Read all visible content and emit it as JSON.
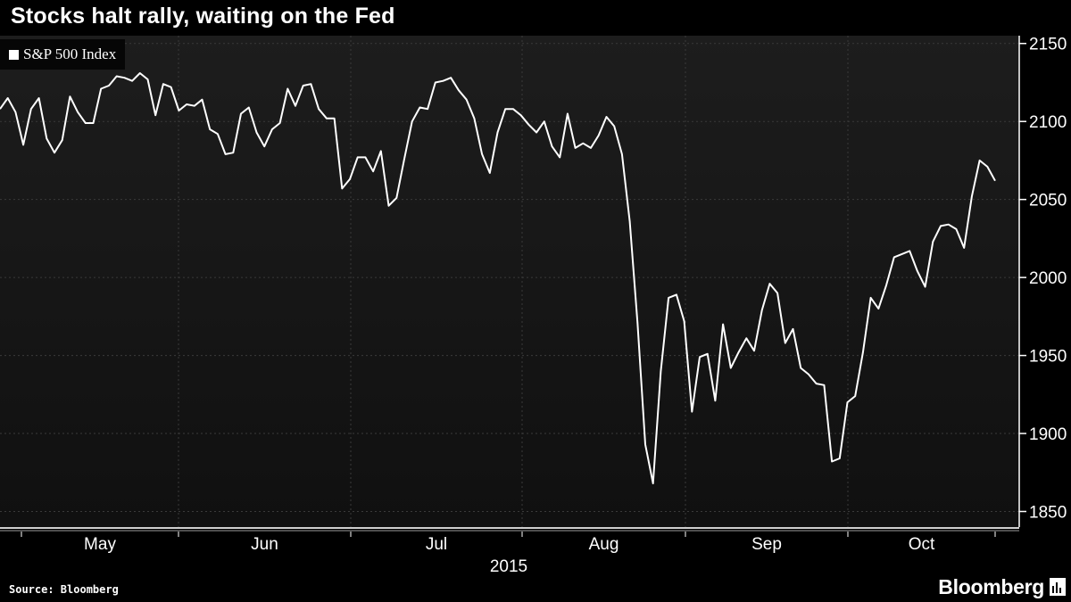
{
  "title": "Stocks halt rally, waiting on the Fed",
  "source": "Source: Bloomberg",
  "brand": "Bloomberg",
  "icons": {
    "brand_icon": "bloomberg-chart-icon"
  },
  "colors": {
    "background": "#000000",
    "line": "#ffffff",
    "grid": "#3a3a3a"
  },
  "chart_data": {
    "type": "line",
    "title": "Stocks halt rally, waiting on the Fed",
    "legend": {
      "position": "top-left",
      "entries": [
        "S&P 500 Index"
      ]
    },
    "grid": true,
    "y_axis": {
      "position": "right",
      "ticks": [
        1850,
        1900,
        1950,
        2000,
        2050,
        2100,
        2150
      ],
      "ylim": [
        1840,
        2155
      ]
    },
    "x_axis": {
      "months": [
        "May",
        "Jun",
        "Jul",
        "Aug",
        "Sep",
        "Oct"
      ],
      "year_label": "2015"
    },
    "series": [
      {
        "name": "S&P 500 Index",
        "values": [
          2108,
          2115,
          2106,
          2085,
          2108,
          2115,
          2089,
          2080,
          2088,
          2116,
          2106,
          2099,
          2099,
          2121,
          2123,
          2129,
          2128,
          2126,
          2131,
          2127,
          2104,
          2124,
          2122,
          2107,
          2111,
          2110,
          2114,
          2095,
          2092,
          2079,
          2080,
          2105,
          2109,
          2093,
          2084,
          2095,
          2099,
          2121,
          2110,
          2123,
          2124,
          2108,
          2102,
          2102,
          2057,
          2063,
          2077,
          2077,
          2068,
          2081,
          2046,
          2051,
          2076,
          2100,
          2109,
          2108,
          2125,
          2126,
          2128,
          2120,
          2114,
          2102,
          2079,
          2067,
          2093,
          2108,
          2108,
          2104,
          2098,
          2093,
          2100,
          2084,
          2077,
          2105,
          2083,
          2086,
          2083,
          2091,
          2103,
          2097,
          2079,
          2036,
          1971,
          1893,
          1868,
          1940,
          1987,
          1989,
          1972,
          1914,
          1949,
          1951,
          1921,
          1970,
          1942,
          1952,
          1961,
          1953,
          1979,
          1996,
          1990,
          1958,
          1967,
          1942,
          1938,
          1932,
          1931,
          1882,
          1884,
          1920,
          1924,
          1952,
          1987,
          1980,
          1995,
          2013,
          2015,
          2017,
          2004,
          1994,
          2023,
          2033,
          2034,
          2031,
          2019,
          2052,
          2075,
          2071,
          2062
        ]
      }
    ]
  }
}
